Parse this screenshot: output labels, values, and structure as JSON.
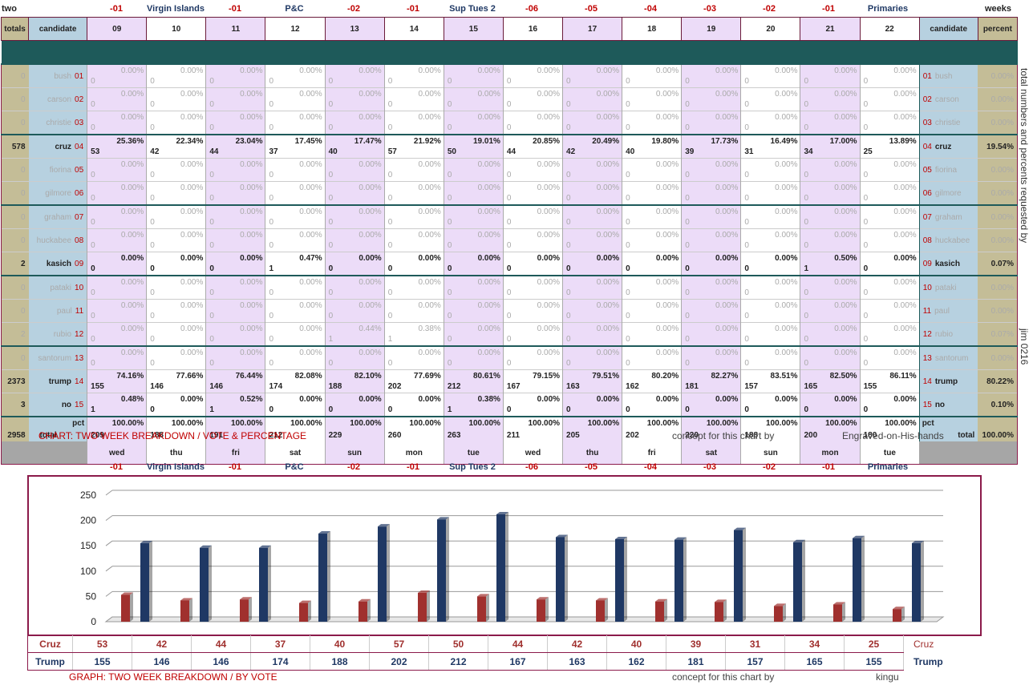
{
  "top_header": {
    "left": "two",
    "right": "weeks"
  },
  "markers": [
    "-01",
    "Virgin Islands",
    "-01",
    "P&C",
    "-02",
    "-01",
    "Sup Tues 2",
    "-06",
    "-05",
    "-04",
    "-03",
    "-02",
    "-01",
    "Primaries"
  ],
  "marker_colors": [
    "red",
    "navy",
    "red",
    "navy",
    "red",
    "red",
    "navy",
    "red",
    "red",
    "red",
    "red",
    "red",
    "red",
    "navy"
  ],
  "headers": {
    "totals": "totals",
    "candidate": "candidate",
    "percent": "percent"
  },
  "columns": [
    "09",
    "10",
    "11",
    "12",
    "13",
    "14",
    "15",
    "16",
    "17",
    "18",
    "19",
    "20",
    "21",
    "22"
  ],
  "candidates": [
    {
      "name": "bush",
      "num": "01",
      "total": "0",
      "percent": "0.00%",
      "counts": [
        "0",
        "0",
        "0",
        "0",
        "0",
        "0",
        "0",
        "0",
        "0",
        "0",
        "0",
        "0",
        "0",
        "0"
      ],
      "pcts": [
        "0.00%",
        "0.00%",
        "0.00%",
        "0.00%",
        "0.00%",
        "0.00%",
        "0.00%",
        "0.00%",
        "0.00%",
        "0.00%",
        "0.00%",
        "0.00%",
        "0.00%",
        "0.00%"
      ],
      "hl": false
    },
    {
      "name": "carson",
      "num": "02",
      "total": "0",
      "percent": "0.00%",
      "counts": [
        "0",
        "0",
        "0",
        "0",
        "0",
        "0",
        "0",
        "0",
        "0",
        "0",
        "0",
        "0",
        "0",
        "0"
      ],
      "pcts": [
        "0.00%",
        "0.00%",
        "0.00%",
        "0.00%",
        "0.00%",
        "0.00%",
        "0.00%",
        "0.00%",
        "0.00%",
        "0.00%",
        "0.00%",
        "0.00%",
        "0.00%",
        "0.00%"
      ],
      "hl": false
    },
    {
      "name": "christie",
      "num": "03",
      "total": "0",
      "percent": "0.00%",
      "counts": [
        "0",
        "0",
        "0",
        "0",
        "0",
        "0",
        "0",
        "0",
        "0",
        "0",
        "0",
        "0",
        "0",
        "0"
      ],
      "pcts": [
        "0.00%",
        "0.00%",
        "0.00%",
        "0.00%",
        "0.00%",
        "0.00%",
        "0.00%",
        "0.00%",
        "0.00%",
        "0.00%",
        "0.00%",
        "0.00%",
        "0.00%",
        "0.00%"
      ],
      "hl": false
    },
    {
      "name": "cruz",
      "num": "04",
      "total": "578",
      "percent": "19.54%",
      "counts": [
        "53",
        "42",
        "44",
        "37",
        "40",
        "57",
        "50",
        "44",
        "42",
        "40",
        "39",
        "31",
        "34",
        "25"
      ],
      "pcts": [
        "25.36%",
        "22.34%",
        "23.04%",
        "17.45%",
        "17.47%",
        "21.92%",
        "19.01%",
        "20.85%",
        "20.49%",
        "19.80%",
        "17.73%",
        "16.49%",
        "17.00%",
        "13.89%"
      ],
      "hl": true
    },
    {
      "name": "fiorina",
      "num": "05",
      "total": "0",
      "percent": "0.00%",
      "counts": [
        "0",
        "0",
        "0",
        "0",
        "0",
        "0",
        "0",
        "0",
        "0",
        "0",
        "0",
        "0",
        "0",
        "0"
      ],
      "pcts": [
        "0.00%",
        "0.00%",
        "0.00%",
        "0.00%",
        "0.00%",
        "0.00%",
        "0.00%",
        "0.00%",
        "0.00%",
        "0.00%",
        "0.00%",
        "0.00%",
        "0.00%",
        "0.00%"
      ],
      "hl": false
    },
    {
      "name": "gilmore",
      "num": "06",
      "total": "0",
      "percent": "0.00%",
      "counts": [
        "0",
        "0",
        "0",
        "0",
        "0",
        "0",
        "0",
        "0",
        "0",
        "0",
        "0",
        "0",
        "0",
        "0"
      ],
      "pcts": [
        "0.00%",
        "0.00%",
        "0.00%",
        "0.00%",
        "0.00%",
        "0.00%",
        "0.00%",
        "0.00%",
        "0.00%",
        "0.00%",
        "0.00%",
        "0.00%",
        "0.00%",
        "0.00%"
      ],
      "hl": false
    },
    {
      "name": "graham",
      "num": "07",
      "total": "0",
      "percent": "0.00%",
      "counts": [
        "0",
        "0",
        "0",
        "0",
        "0",
        "0",
        "0",
        "0",
        "0",
        "0",
        "0",
        "0",
        "0",
        "0"
      ],
      "pcts": [
        "0.00%",
        "0.00%",
        "0.00%",
        "0.00%",
        "0.00%",
        "0.00%",
        "0.00%",
        "0.00%",
        "0.00%",
        "0.00%",
        "0.00%",
        "0.00%",
        "0.00%",
        "0.00%"
      ],
      "hl": false
    },
    {
      "name": "huckabee",
      "num": "08",
      "total": "0",
      "percent": "0.00%",
      "counts": [
        "0",
        "0",
        "0",
        "0",
        "0",
        "0",
        "0",
        "0",
        "0",
        "0",
        "0",
        "0",
        "0",
        "0"
      ],
      "pcts": [
        "0.00%",
        "0.00%",
        "0.00%",
        "0.00%",
        "0.00%",
        "0.00%",
        "0.00%",
        "0.00%",
        "0.00%",
        "0.00%",
        "0.00%",
        "0.00%",
        "0.00%",
        "0.00%"
      ],
      "hl": false
    },
    {
      "name": "kasich",
      "num": "09",
      "total": "2",
      "percent": "0.07%",
      "counts": [
        "0",
        "0",
        "0",
        "1",
        "0",
        "0",
        "0",
        "0",
        "0",
        "0",
        "0",
        "0",
        "1",
        "0"
      ],
      "pcts": [
        "0.00%",
        "0.00%",
        "0.00%",
        "0.47%",
        "0.00%",
        "0.00%",
        "0.00%",
        "0.00%",
        "0.00%",
        "0.00%",
        "0.00%",
        "0.00%",
        "0.50%",
        "0.00%"
      ],
      "hl": true
    },
    {
      "name": "pataki",
      "num": "10",
      "total": "0",
      "percent": "0.00%",
      "counts": [
        "0",
        "0",
        "0",
        "0",
        "0",
        "0",
        "0",
        "0",
        "0",
        "0",
        "0",
        "0",
        "0",
        "0"
      ],
      "pcts": [
        "0.00%",
        "0.00%",
        "0.00%",
        "0.00%",
        "0.00%",
        "0.00%",
        "0.00%",
        "0.00%",
        "0.00%",
        "0.00%",
        "0.00%",
        "0.00%",
        "0.00%",
        "0.00%"
      ],
      "hl": false
    },
    {
      "name": "paul",
      "num": "11",
      "total": "0",
      "percent": "0.00%",
      "counts": [
        "0",
        "0",
        "0",
        "0",
        "0",
        "0",
        "0",
        "0",
        "0",
        "0",
        "0",
        "0",
        "0",
        "0"
      ],
      "pcts": [
        "0.00%",
        "0.00%",
        "0.00%",
        "0.00%",
        "0.00%",
        "0.00%",
        "0.00%",
        "0.00%",
        "0.00%",
        "0.00%",
        "0.00%",
        "0.00%",
        "0.00%",
        "0.00%"
      ],
      "hl": false
    },
    {
      "name": "rubio",
      "num": "12",
      "total": "2",
      "percent": "0.07%",
      "counts": [
        "0",
        "0",
        "0",
        "0",
        "1",
        "1",
        "0",
        "0",
        "0",
        "0",
        "0",
        "0",
        "0",
        "0"
      ],
      "pcts": [
        "0.00%",
        "0.00%",
        "0.00%",
        "0.00%",
        "0.44%",
        "0.38%",
        "0.00%",
        "0.00%",
        "0.00%",
        "0.00%",
        "0.00%",
        "0.00%",
        "0.00%",
        "0.00%"
      ],
      "hl": false
    },
    {
      "name": "santorum",
      "num": "13",
      "total": "0",
      "percent": "0.00%",
      "counts": [
        "0",
        "0",
        "0",
        "0",
        "0",
        "0",
        "0",
        "0",
        "0",
        "0",
        "0",
        "0",
        "0",
        "0"
      ],
      "pcts": [
        "0.00%",
        "0.00%",
        "0.00%",
        "0.00%",
        "0.00%",
        "0.00%",
        "0.00%",
        "0.00%",
        "0.00%",
        "0.00%",
        "0.00%",
        "0.00%",
        "0.00%",
        "0.00%"
      ],
      "hl": false
    },
    {
      "name": "trump",
      "num": "14",
      "total": "2373",
      "percent": "80.22%",
      "counts": [
        "155",
        "146",
        "146",
        "174",
        "188",
        "202",
        "212",
        "167",
        "163",
        "162",
        "181",
        "157",
        "165",
        "155"
      ],
      "pcts": [
        "74.16%",
        "77.66%",
        "76.44%",
        "82.08%",
        "82.10%",
        "77.69%",
        "80.61%",
        "79.15%",
        "79.51%",
        "80.20%",
        "82.27%",
        "83.51%",
        "82.50%",
        "86.11%"
      ],
      "hl": true
    },
    {
      "name": "no",
      "num": "15",
      "total": "3",
      "percent": "0.10%",
      "counts": [
        "1",
        "0",
        "1",
        "0",
        "0",
        "0",
        "1",
        "0",
        "0",
        "0",
        "0",
        "0",
        "0",
        "0"
      ],
      "pcts": [
        "0.48%",
        "0.00%",
        "0.52%",
        "0.00%",
        "0.00%",
        "0.00%",
        "0.38%",
        "0.00%",
        "0.00%",
        "0.00%",
        "0.00%",
        "0.00%",
        "0.00%",
        "0.00%"
      ],
      "hl": true
    }
  ],
  "total_row": {
    "total": "2958",
    "pct_label": "pct",
    "label": "total",
    "percent": "100.00%",
    "counts": [
      "209",
      "188",
      "191",
      "212",
      "229",
      "260",
      "263",
      "211",
      "205",
      "202",
      "220",
      "188",
      "200",
      "180"
    ],
    "pcts": [
      "100.00%",
      "100.00%",
      "100.00%",
      "100.00%",
      "100.00%",
      "100.00%",
      "100.00%",
      "100.00%",
      "100.00%",
      "100.00%",
      "100.00%",
      "100.00%",
      "100.00%",
      "100.00%"
    ]
  },
  "days": [
    "wed",
    "thu",
    "fri",
    "sat",
    "sun",
    "mon",
    "tue",
    "wed",
    "thu",
    "fri",
    "sat",
    "sun",
    "mon",
    "tue"
  ],
  "side_texts": {
    "requested": "total numbers and percents requested by",
    "author": "jim 0216"
  },
  "captions": {
    "chart1": "CHART: TWO WEEK BREAKDOWN / VOTE & PERCENTAGE",
    "concept1": "concept for this chart by",
    "author1": "Engraved-on-His-hands",
    "chart2": "GRAPH: TWO WEEK BREAKDOWN / BY VOTE",
    "concept2": "concept for this chart by",
    "author2": "kingu"
  },
  "colors": {
    "cruz": "#a0302e",
    "trump": "#1f3864",
    "gold": "#c4bd97",
    "blue": "#b7d1e0",
    "lavender": "#ecdcf8",
    "border": "#8b1a4a"
  },
  "chart_data": {
    "type": "bar",
    "categories": [
      "09",
      "10",
      "11",
      "12",
      "13",
      "14",
      "15",
      "16",
      "17",
      "18",
      "19",
      "20",
      "21",
      "22"
    ],
    "series": [
      {
        "name": "Cruz",
        "values": [
          53,
          42,
          44,
          37,
          40,
          57,
          50,
          44,
          42,
          40,
          39,
          31,
          34,
          25
        ]
      },
      {
        "name": "Trump",
        "values": [
          155,
          146,
          146,
          174,
          188,
          202,
          212,
          167,
          163,
          162,
          181,
          157,
          165,
          155
        ]
      }
    ],
    "y_ticks": [
      "0",
      "50",
      "100",
      "150",
      "200",
      "250"
    ],
    "ylim": [
      0,
      250
    ],
    "grid": true
  }
}
